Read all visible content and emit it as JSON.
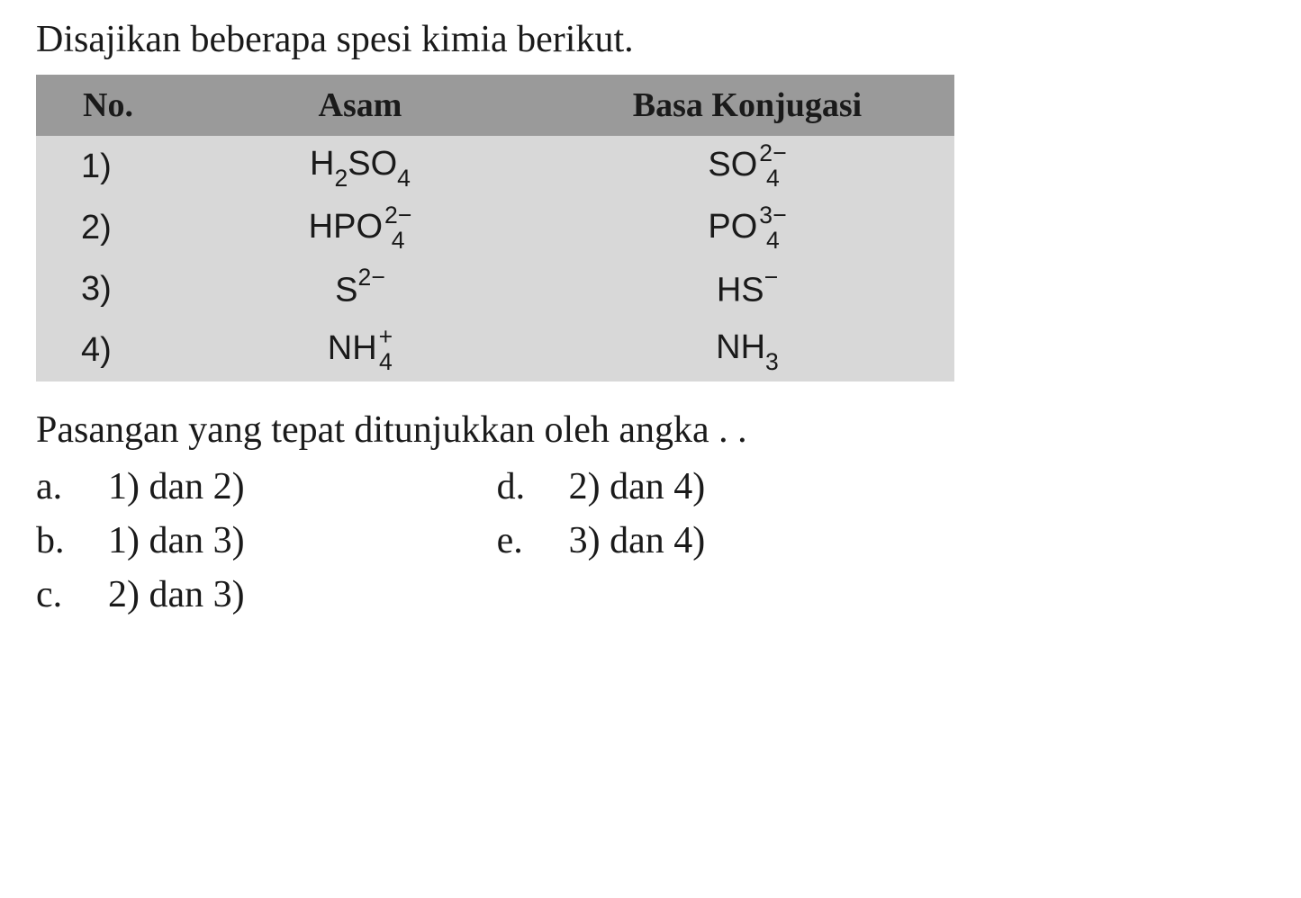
{
  "intro_text": "Disajikan beberapa spesi kimia berikut.",
  "table": {
    "headers": {
      "col1": "No.",
      "col2": "Asam",
      "col3": "Basa Konjugasi"
    },
    "header_bg_color": "#9a9a9a",
    "cell_bg_color": "#d8d8d8",
    "rows": [
      {
        "num": "1)",
        "acid": {
          "base": "H",
          "sub1": "2",
          "mid": "SO",
          "sub2": "4",
          "charge": ""
        },
        "conjugate": {
          "base": "SO",
          "sub": "4",
          "charge": "2−"
        }
      },
      {
        "num": "2)",
        "acid": {
          "base": "HPO",
          "sub": "4",
          "charge": "2−"
        },
        "conjugate": {
          "base": "PO",
          "sub": "4",
          "charge": "3−"
        }
      },
      {
        "num": "3)",
        "acid": {
          "base": "S",
          "charge": "2−"
        },
        "conjugate": {
          "base": "HS",
          "charge": "−"
        }
      },
      {
        "num": "4)",
        "acid": {
          "base": "NH",
          "sub": "4",
          "charge": "+"
        },
        "conjugate": {
          "base": "NH",
          "sub": "3",
          "charge": ""
        }
      }
    ]
  },
  "prompt_text": "Pasangan yang tepat ditunjukkan oleh angka . .",
  "options": {
    "left": [
      {
        "letter": "a.",
        "text": "1) dan 2)"
      },
      {
        "letter": "b.",
        "text": "1) dan 3)"
      },
      {
        "letter": "c.",
        "text": "2) dan 3)"
      }
    ],
    "right": [
      {
        "letter": "d.",
        "text": "2) dan 4)"
      },
      {
        "letter": "e.",
        "text": "3) dan 4)"
      }
    ]
  },
  "styling": {
    "page_bg": "#ffffff",
    "text_color": "#1a1a1a",
    "intro_fontsize": 42,
    "table_header_fontsize": 38,
    "table_cell_fontsize": 38,
    "prompt_fontsize": 42,
    "option_fontsize": 42,
    "font_family_body": "Times New Roman",
    "font_family_table": "Arial"
  }
}
